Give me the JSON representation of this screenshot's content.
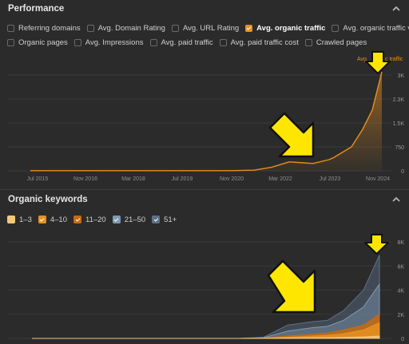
{
  "performance": {
    "title": "Performance",
    "checkboxes_row1": [
      {
        "label": "Referring domains",
        "checked": false
      },
      {
        "label": "Avg. Domain Rating",
        "checked": false
      },
      {
        "label": "Avg. URL Rating",
        "checked": false
      },
      {
        "label": "Avg. organic traffic",
        "checked": true
      },
      {
        "label": "Avg. organic traffic value",
        "checked": false
      }
    ],
    "checkboxes_row2": [
      {
        "label": "Organic pages",
        "checked": false
      },
      {
        "label": "Avg. Impressions",
        "checked": false
      },
      {
        "label": "Avg. paid traffic",
        "checked": false
      },
      {
        "label": "Avg. paid traffic cost",
        "checked": false
      },
      {
        "label": "Crawled pages",
        "checked": false
      }
    ],
    "series_label": "Avg. organic traffic",
    "series_label_visible": "Avg. ",
    "series_label_visible_tail": "c traffic",
    "y_ticks": [
      "3K",
      "2.3K",
      "1.5K",
      "750",
      "0"
    ],
    "x_ticks": [
      "Jul 2015",
      "Nov 2016",
      "Mar 2018",
      "Jul 2019",
      "Nov 2020",
      "Mar 2022",
      "Jul 2023",
      "Nov 2024"
    ],
    "accent": "#e8911f"
  },
  "keywords": {
    "title": "Organic keywords",
    "legend": [
      {
        "label": "1–3",
        "color": "#f4c77b"
      },
      {
        "label": "4–10",
        "color": "#e8911f"
      },
      {
        "label": "11–20",
        "color": "#c56b10"
      },
      {
        "label": "21–50",
        "color": "#7f9ab3"
      },
      {
        "label": "51+",
        "color": "#5d7188"
      }
    ],
    "y_ticks": [
      "8K",
      "6K",
      "4K",
      "2K",
      "0"
    ]
  },
  "chart_data": [
    {
      "type": "area",
      "title": "",
      "series": [
        {
          "name": "Avg. organic traffic",
          "x": [
            "Jul 2015",
            "Nov 2016",
            "Mar 2018",
            "Jul 2019",
            "Nov 2020",
            "Mar 2021",
            "Sep 2021",
            "Mar 2022",
            "Sep 2022",
            "Mar 2023",
            "Jul 2023",
            "Jan 2024",
            "Jun 2024",
            "Sep 2024",
            "Nov 2024",
            "Jan 2025"
          ],
          "values": [
            5,
            5,
            5,
            5,
            5,
            20,
            110,
            280,
            230,
            350,
            420,
            750,
            1300,
            1900,
            2500,
            3100
          ]
        }
      ],
      "ylim": [
        0,
        3000
      ]
    },
    {
      "type": "area",
      "title": "",
      "series": [
        {
          "name": "1–3",
          "values": [
            0,
            0,
            0,
            0,
            0,
            10,
            30,
            50,
            60,
            80,
            120,
            200
          ]
        },
        {
          "name": "4–10",
          "values": [
            0,
            0,
            0,
            0,
            0,
            20,
            100,
            200,
            260,
            400,
            700,
            1300
          ]
        },
        {
          "name": "11–20",
          "values": [
            0,
            0,
            0,
            0,
            0,
            30,
            200,
            350,
            450,
            700,
            1100,
            2000
          ]
        },
        {
          "name": "21–50",
          "values": [
            0,
            0,
            0,
            0,
            0,
            60,
            600,
            900,
            1000,
            1500,
            2600,
            4500
          ]
        },
        {
          "name": "51+",
          "values": [
            0,
            0,
            0,
            0,
            0,
            100,
            1100,
            1400,
            1500,
            2300,
            4000,
            6900
          ]
        }
      ],
      "x": [
        "Jul 2015",
        "Nov 2016",
        "Mar 2018",
        "Jul 2019",
        "Nov 2020",
        "Mar 2021",
        "Mar 2022",
        "Sep 2022",
        "Mar 2023",
        "Jul 2023",
        "Mar 2024",
        "Nov 2024"
      ],
      "ylim": [
        0,
        8000
      ]
    }
  ]
}
